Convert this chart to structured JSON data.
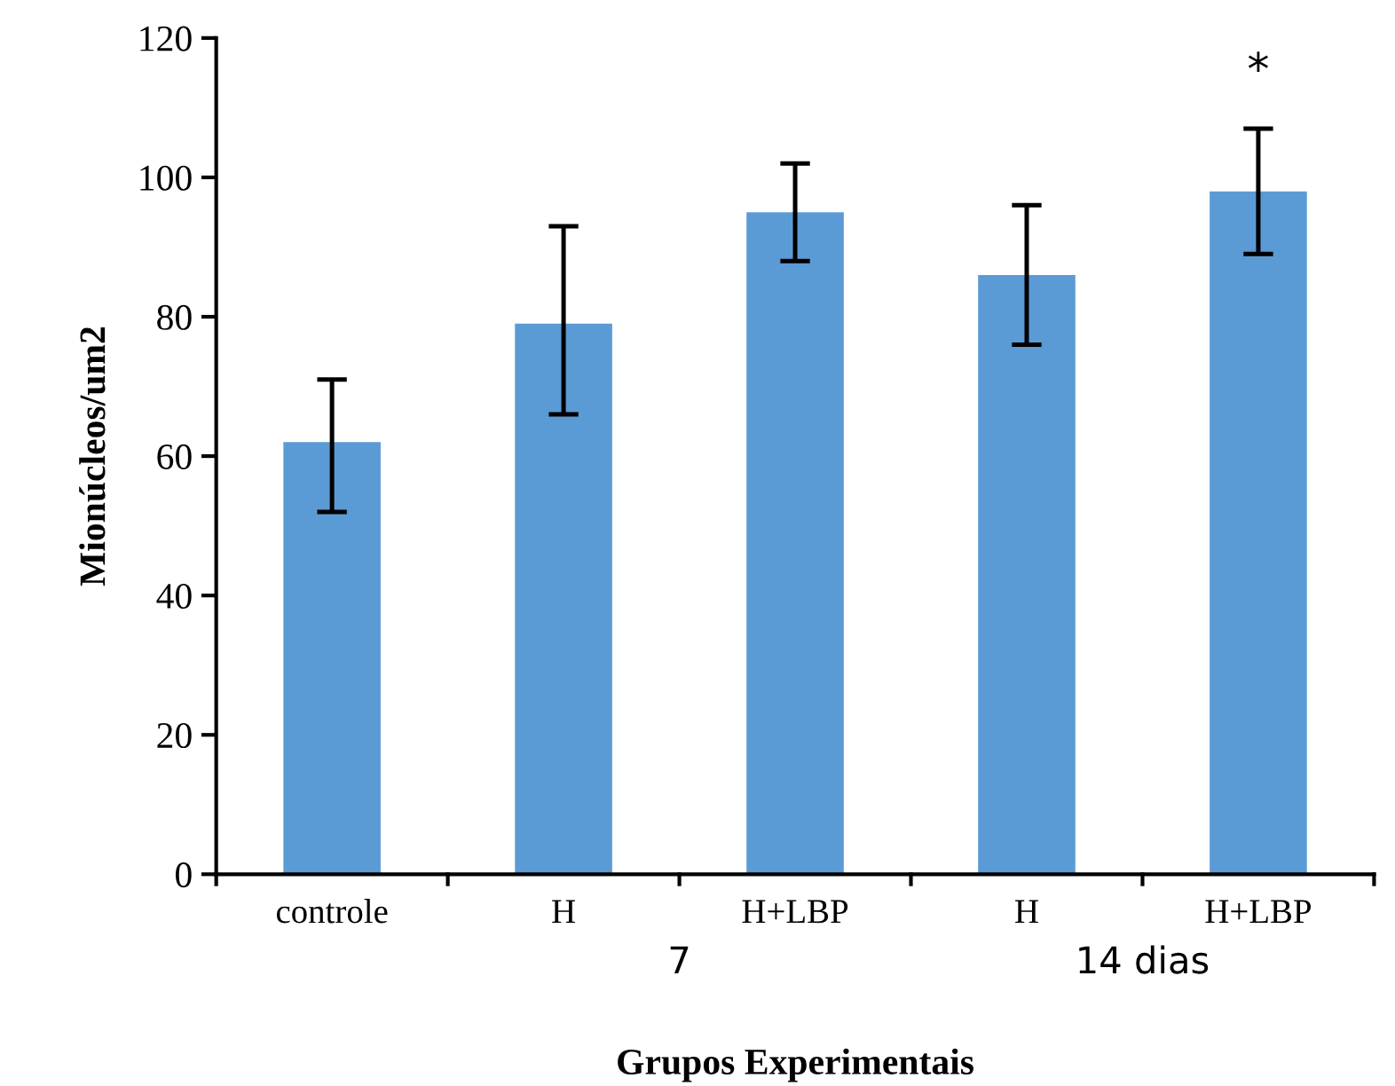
{
  "chart_data": {
    "type": "bar",
    "xlabel": "Grupos Experimentais",
    "ylabel": "Mionúcleos/um2",
    "categories": [
      "controle",
      "H",
      "H+LBP",
      "H",
      "H+LBP"
    ],
    "values": [
      62,
      79,
      95,
      86,
      98
    ],
    "errors": [
      [
        52,
        71
      ],
      [
        66,
        93
      ],
      [
        88,
        102
      ],
      [
        76,
        96
      ],
      [
        89,
        107
      ]
    ],
    "color": "#5b9bd5",
    "ylim": [
      0,
      120
    ],
    "yticks": [
      0,
      20,
      40,
      60,
      80,
      100,
      120
    ],
    "grid": false,
    "annotations": [
      "*",
      "7",
      "14 dias"
    ]
  }
}
